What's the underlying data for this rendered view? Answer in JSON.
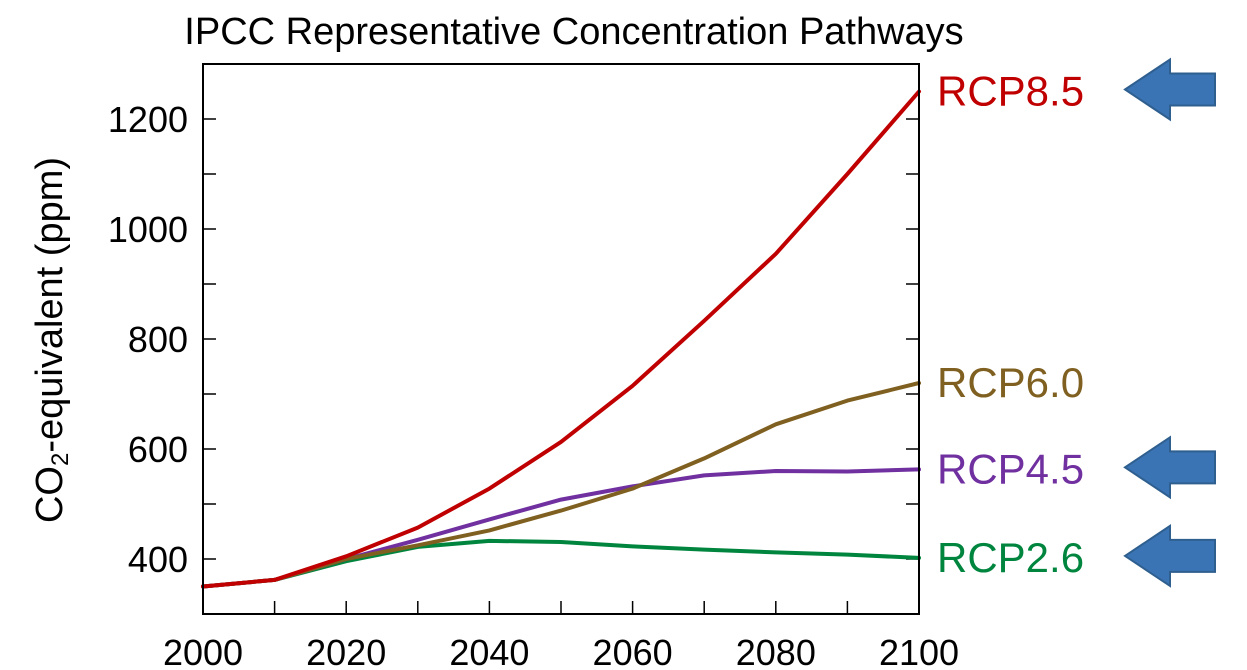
{
  "chart_data": {
    "type": "line",
    "title": "IPCC Representative Concentration Pathways",
    "ylabel_main": "CO",
    "ylabel_sub": "2",
    "ylabel_rest": "-equivalent (ppm)",
    "xlabel": "",
    "xlim": [
      2000,
      2100
    ],
    "ylim": [
      300,
      1300
    ],
    "x_ticks": [
      2000,
      2020,
      2040,
      2060,
      2080,
      2100
    ],
    "x_minor_ticks": [
      2010,
      2030,
      2050,
      2070,
      2090
    ],
    "y_ticks": [
      400,
      600,
      800,
      1000,
      1200
    ],
    "y_minor_ticks": [
      500,
      700,
      900,
      1100,
      1300
    ],
    "grid": false,
    "legend": "labels at right end of each line",
    "x": [
      2000,
      2010,
      2020,
      2030,
      2040,
      2050,
      2060,
      2070,
      2080,
      2090,
      2100
    ],
    "series": [
      {
        "name": "RCP8.5",
        "color": "#c00000",
        "arrow": true,
        "values": [
          350,
          362,
          405,
          457,
          528,
          613,
          715,
          833,
          955,
          1100,
          1250
        ]
      },
      {
        "name": "RCP6.0",
        "color": "#7f6020",
        "arrow": false,
        "values": [
          350,
          362,
          400,
          425,
          452,
          488,
          528,
          583,
          645,
          688,
          720
        ]
      },
      {
        "name": "RCP4.5",
        "color": "#7030a0",
        "arrow": true,
        "values": [
          350,
          362,
          400,
          435,
          472,
          508,
          532,
          552,
          560,
          559,
          563
        ]
      },
      {
        "name": "RCP2.6",
        "color": "#00853e",
        "arrow": true,
        "values": [
          350,
          362,
          396,
          422,
          433,
          431,
          423,
          417,
          412,
          408,
          402
        ]
      }
    ]
  }
}
